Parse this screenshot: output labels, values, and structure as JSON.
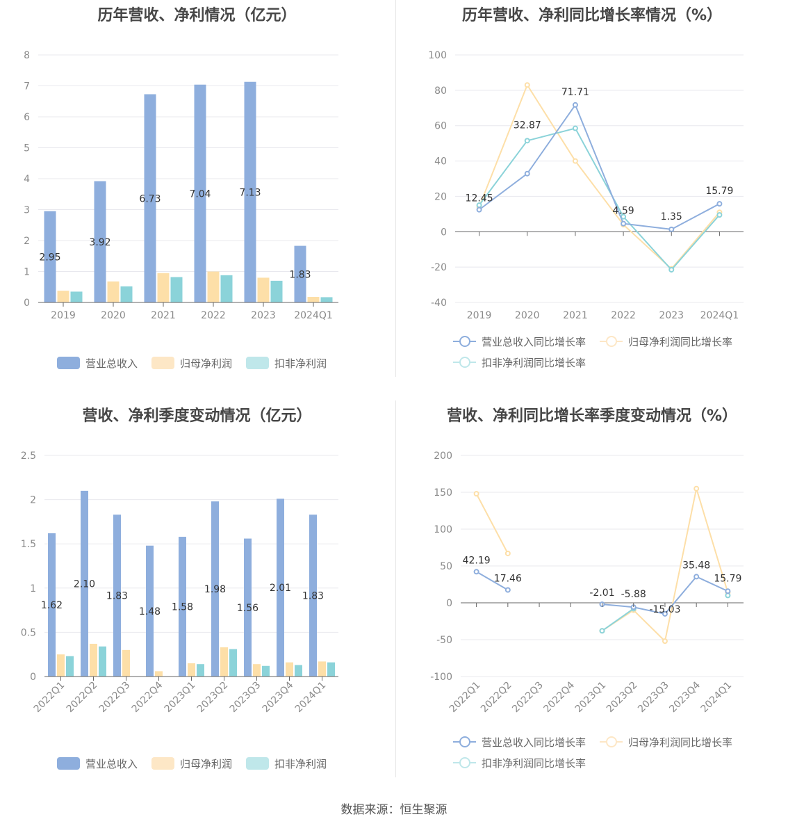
{
  "colors": {
    "revenue": "#8eaedd",
    "net_profit": "#fddfa8",
    "deducted_profit": "#8bd3d9"
  },
  "legend": {
    "bar_labels": [
      "营业总收入",
      "归母净利润",
      "扣非净利润"
    ],
    "line_labels": [
      "营业总收入同比增长率",
      "归母净利润同比增长率",
      "扣非净利润同比增长率"
    ]
  },
  "footer": "数据来源：恒生聚源",
  "chart_data": [
    {
      "id": "annual-amount",
      "type": "bar",
      "title": "历年营收、净利情况（亿元）",
      "categories": [
        "2019",
        "2020",
        "2021",
        "2022",
        "2023",
        "2024Q1"
      ],
      "ylim": [
        0,
        8
      ],
      "yticks": [
        0,
        1,
        2,
        3,
        4,
        5,
        6,
        7,
        8
      ],
      "grid": true,
      "legend_position": "bottom",
      "series": [
        {
          "name": "营业总收入",
          "values": [
            2.95,
            3.92,
            6.73,
            7.04,
            7.13,
            1.83
          ],
          "labels": [
            "2.95",
            "3.92",
            "6.73",
            "7.04",
            "7.13",
            "1.83"
          ]
        },
        {
          "name": "归母净利润",
          "values": [
            0.38,
            0.68,
            0.95,
            1.0,
            0.8,
            0.18
          ]
        },
        {
          "name": "扣非净利润",
          "values": [
            0.35,
            0.52,
            0.82,
            0.88,
            0.7,
            0.17
          ]
        }
      ]
    },
    {
      "id": "annual-growth",
      "type": "line",
      "title": "历年营收、净利同比增长率情况（%）",
      "categories": [
        "2019",
        "2020",
        "2021",
        "2022",
        "2023",
        "2024Q1"
      ],
      "ylim": [
        -40,
        100
      ],
      "yticks": [
        -40,
        -20,
        0,
        20,
        40,
        60,
        80,
        100
      ],
      "grid": true,
      "legend_position": "bottom",
      "series": [
        {
          "name": "营业总收入同比增长率",
          "values": [
            12.45,
            32.87,
            71.71,
            4.59,
            1.35,
            15.79
          ],
          "labels": [
            "12.45",
            "32.87",
            "71.71",
            "4.59",
            "1.35",
            "15.79"
          ]
        },
        {
          "name": "归母净利润同比增长率",
          "values": [
            14,
            83,
            40,
            4,
            -21,
            11
          ]
        },
        {
          "name": "扣非净利润同比增长率",
          "values": [
            15,
            51.5,
            58.5,
            8.5,
            -21.5,
            9.5
          ]
        }
      ]
    },
    {
      "id": "quarterly-amount",
      "type": "bar",
      "title": "营收、净利季度变动情况（亿元）",
      "categories": [
        "2022Q1",
        "2022Q2",
        "2022Q3",
        "2022Q4",
        "2023Q1",
        "2023Q2",
        "2023Q3",
        "2023Q4",
        "2024Q1"
      ],
      "ylim": [
        0,
        2.5
      ],
      "yticks": [
        "0",
        "0.5",
        "1",
        "1.5",
        "2",
        "2.5"
      ],
      "grid": true,
      "legend_position": "bottom",
      "series": [
        {
          "name": "营业总收入",
          "values": [
            1.62,
            2.1,
            1.83,
            1.48,
            1.58,
            1.98,
            1.56,
            2.01,
            1.83
          ],
          "labels": [
            "1.62",
            "2.10",
            "1.83",
            "1.48",
            "1.58",
            "1.98",
            "1.56",
            "2.01",
            "1.83"
          ]
        },
        {
          "name": "归母净利润",
          "values": [
            0.25,
            0.37,
            0.3,
            0.06,
            0.15,
            0.33,
            0.14,
            0.16,
            0.17
          ]
        },
        {
          "name": "扣非净利润",
          "values": [
            0.23,
            0.34,
            null,
            null,
            0.14,
            0.31,
            0.12,
            0.13,
            0.16
          ]
        }
      ]
    },
    {
      "id": "quarterly-growth",
      "type": "line",
      "title": "营收、净利同比增长率季度变动情况（%）",
      "categories": [
        "2022Q1",
        "2022Q2",
        "2022Q3",
        "2022Q4",
        "2023Q1",
        "2023Q2",
        "2023Q3",
        "2023Q4",
        "2024Q1"
      ],
      "ylim": [
        -100,
        200
      ],
      "yticks": [
        -100,
        -50,
        0,
        50,
        100,
        150,
        200
      ],
      "grid": true,
      "legend_position": "bottom",
      "series": [
        {
          "name": "营业总收入同比增长率",
          "values": [
            42.19,
            17.46,
            null,
            null,
            -2.01,
            -5.88,
            -15.03,
            35.48,
            15.79
          ],
          "labels": [
            "42.19",
            "17.46",
            "",
            "",
            "-2.01",
            "-5.88",
            "-15.03",
            "35.48",
            "15.79"
          ]
        },
        {
          "name": "归母净利润同比增长率",
          "values": [
            148,
            67,
            null,
            null,
            -38,
            -10,
            -52,
            155,
            14
          ]
        },
        {
          "name": "扣非净利润同比增长率",
          "values": [
            null,
            null,
            null,
            null,
            -38,
            -8,
            null,
            null,
            10
          ]
        }
      ]
    }
  ]
}
